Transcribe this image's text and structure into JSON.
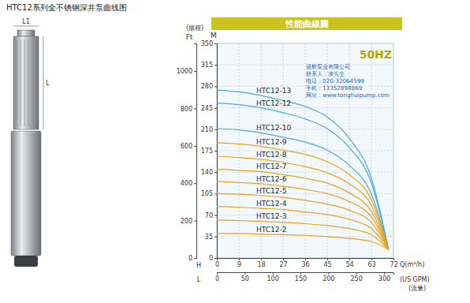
{
  "chart_data": {
    "type": "line",
    "title": "HTC12系列全不锈钢深井泵曲线图",
    "subtitle": "性能曲線圖",
    "xlabel": "Q(m³/h)",
    "x2label": "(US GPM)",
    "ylabel": "M",
    "y2label": "Ft",
    "x": [
      0,
      9,
      18,
      27,
      36,
      45,
      54,
      63,
      70
    ],
    "xlim": [
      0,
      72
    ],
    "xticks": [
      0,
      9,
      18,
      27,
      36,
      45,
      54,
      63,
      72
    ],
    "x2lim": [
      0,
      317
    ],
    "x2ticks": [
      0,
      50,
      100,
      150,
      200,
      250,
      300
    ],
    "ylim": [
      0,
      350
    ],
    "yticks": [
      0,
      35,
      70,
      105,
      140,
      175,
      210,
      245,
      280,
      315,
      350
    ],
    "y2lim": [
      0,
      1148.3
    ],
    "y2ticks": [
      0,
      200,
      400,
      600,
      800,
      1000
    ],
    "grid": true,
    "series": [
      {
        "name": "HTC12-13",
        "color": "#4aa8dc",
        "values": [
          274,
          271,
          265,
          257,
          247,
          230,
          195,
          130,
          14
        ]
      },
      {
        "name": "HTC12-12",
        "color": "#4aa8dc",
        "values": [
          253,
          250,
          245,
          237,
          227,
          211,
          180,
          122,
          14
        ]
      },
      {
        "name": "HTC12-10",
        "color": "#4aa8dc",
        "values": [
          211,
          209,
          204,
          197,
          189,
          176,
          151,
          104,
          14
        ]
      },
      {
        "name": "HTC12-9",
        "color": "#e8a317",
        "values": [
          188,
          186,
          182,
          176,
          169,
          157,
          136,
          95,
          14
        ]
      },
      {
        "name": "HTC12-8",
        "color": "#e8a317",
        "values": [
          166,
          164,
          161,
          156,
          149,
          139,
          121,
          86,
          14
        ]
      },
      {
        "name": "HTC12-7",
        "color": "#e8a317",
        "values": [
          145,
          143,
          141,
          136,
          130,
          122,
          106,
          76,
          14
        ]
      },
      {
        "name": "HTC12-6",
        "color": "#e8a317",
        "values": [
          125,
          123,
          121,
          117,
          112,
          105,
          92,
          67,
          14
        ]
      },
      {
        "name": "HTC12-5",
        "color": "#e8a317",
        "values": [
          105,
          104,
          102,
          99,
          94,
          88,
          78,
          58,
          14
        ]
      },
      {
        "name": "HTC12-4",
        "color": "#e8a317",
        "values": [
          84,
          83,
          81,
          79,
          75,
          71,
          63,
          48,
          14
        ]
      },
      {
        "name": "HTC12-3",
        "color": "#e8a317",
        "values": [
          62,
          61,
          60,
          58,
          56,
          53,
          48,
          38,
          14
        ]
      },
      {
        "name": "HTC12-2",
        "color": "#e8a317",
        "values": [
          40,
          40,
          39,
          38,
          37,
          35,
          32,
          27,
          14
        ]
      }
    ],
    "annotations": {
      "frequency": "50HZ",
      "head": "(揚程)",
      "flow": "(流量)",
      "h_axis": "H",
      "l_axis": "L",
      "contact": [
        "通辉泵业有限公司",
        "联系人：凌先生",
        "电话：020-32064599",
        "手机：13352898869",
        "网址：www.tonghuipump.com"
      ]
    }
  },
  "pump": {
    "labels": [
      "L1",
      "L"
    ]
  }
}
